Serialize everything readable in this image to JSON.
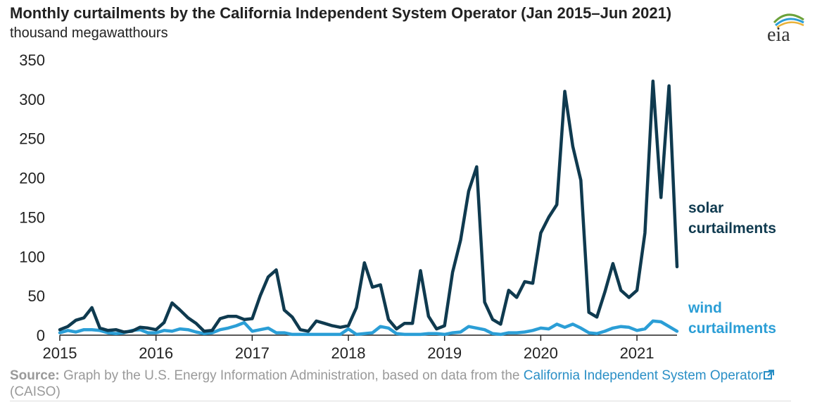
{
  "header": {
    "title": "Monthly curtailments by the California Independent System Operator (Jan 2015–Jun 2021)",
    "subtitle": "thousand megawatthours",
    "logo_text": "eia"
  },
  "source": {
    "label": "Source:",
    "text": "Graph by the U.S. Energy Information Administration, based on data from the",
    "link_text": "California Independent System Operator",
    "suffix": "(CAISO)",
    "icon": "external-link-icon"
  },
  "colors": {
    "solar": "#0f3a4f",
    "wind": "#2b9ed6",
    "axis": "#222222"
  },
  "chart_data": {
    "type": "line",
    "title": "Monthly curtailments by the California Independent System Operator (Jan 2015–Jun 2021)",
    "ylabel": "thousand megawatthours",
    "ylim": [
      0,
      350
    ],
    "yticks": [
      "0",
      "50",
      "100",
      "150",
      "200",
      "250",
      "300",
      "350"
    ],
    "xlim": [
      "2015-01",
      "2021-06"
    ],
    "xticks": [
      "2015",
      "2016",
      "2017",
      "2018",
      "2019",
      "2020",
      "2021"
    ],
    "grid": false,
    "x": [
      "2015-01",
      "2015-02",
      "2015-03",
      "2015-04",
      "2015-05",
      "2015-06",
      "2015-07",
      "2015-08",
      "2015-09",
      "2015-10",
      "2015-11",
      "2015-12",
      "2016-01",
      "2016-02",
      "2016-03",
      "2016-04",
      "2016-05",
      "2016-06",
      "2016-07",
      "2016-08",
      "2016-09",
      "2016-10",
      "2016-11",
      "2016-12",
      "2017-01",
      "2017-02",
      "2017-03",
      "2017-04",
      "2017-05",
      "2017-06",
      "2017-07",
      "2017-08",
      "2017-09",
      "2017-10",
      "2017-11",
      "2017-12",
      "2018-01",
      "2018-02",
      "2018-03",
      "2018-04",
      "2018-05",
      "2018-06",
      "2018-07",
      "2018-08",
      "2018-09",
      "2018-10",
      "2018-11",
      "2018-12",
      "2019-01",
      "2019-02",
      "2019-03",
      "2019-04",
      "2019-05",
      "2019-06",
      "2019-07",
      "2019-08",
      "2019-09",
      "2019-10",
      "2019-11",
      "2019-12",
      "2020-01",
      "2020-02",
      "2020-03",
      "2020-04",
      "2020-05",
      "2020-06",
      "2020-07",
      "2020-08",
      "2020-09",
      "2020-10",
      "2020-11",
      "2020-12",
      "2021-01",
      "2021-02",
      "2021-03",
      "2021-04",
      "2021-05",
      "2021-06"
    ],
    "series": [
      {
        "name": "solar curtailments",
        "color": "#0f3a4f",
        "values": [
          7,
          11,
          19,
          22,
          35,
          9,
          6,
          7,
          4,
          5,
          10,
          9,
          7,
          16,
          41,
          32,
          22,
          15,
          5,
          6,
          21,
          24,
          24,
          20,
          21,
          50,
          74,
          83,
          32,
          23,
          7,
          5,
          18,
          15,
          12,
          10,
          12,
          35,
          92,
          61,
          64,
          20,
          8,
          15,
          15,
          82,
          24,
          8,
          12,
          80,
          121,
          183,
          214,
          42,
          20,
          14,
          57,
          48,
          68,
          66,
          130,
          150,
          166,
          310,
          240,
          197,
          29,
          23,
          55,
          91,
          57,
          48,
          57,
          130,
          323,
          175,
          317,
          87
        ]
      },
      {
        "name": "wind curtailments",
        "color": "#2b9ed6",
        "values": [
          3,
          6,
          4,
          7,
          7,
          6,
          3,
          2,
          3,
          6,
          7,
          3,
          3,
          6,
          5,
          8,
          7,
          4,
          2,
          3,
          7,
          9,
          12,
          16,
          5,
          7,
          9,
          3,
          3,
          1,
          1,
          1,
          1,
          1,
          1,
          1,
          8,
          1,
          2,
          3,
          11,
          9,
          2,
          1,
          1,
          1,
          2,
          2,
          1,
          3,
          4,
          11,
          9,
          7,
          2,
          1,
          3,
          3,
          4,
          6,
          9,
          8,
          14,
          10,
          14,
          9,
          3,
          2,
          5,
          9,
          11,
          10,
          6,
          8,
          18,
          17,
          11,
          5
        ]
      }
    ]
  }
}
